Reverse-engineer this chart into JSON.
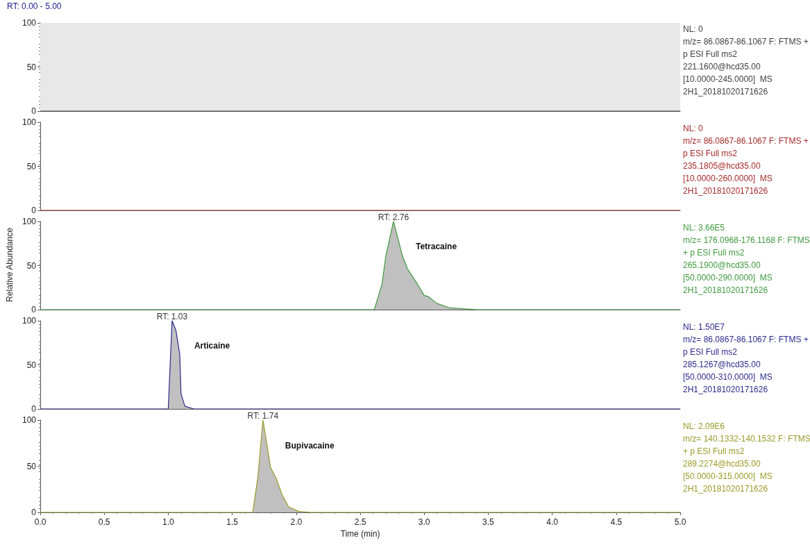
{
  "chart_data": [
    {
      "type": "line",
      "title": "RT: 0.00 - 5.00",
      "xlim": [
        0,
        5
      ],
      "ylim": [
        0,
        100
      ],
      "yticks": [
        0,
        50,
        100
      ],
      "tick_labels": "y",
      "bands": [
        {
          "axis": "x",
          "from": 0,
          "to": 5,
          "color": "#e8e8e8"
        }
      ],
      "series": [
        {
          "color": "#404040",
          "x": [
            0,
            5
          ],
          "values": [
            0,
            0
          ]
        }
      ],
      "annotations": [
        "NL: 0\nm/z= 86.0867-86.1067 F: FTMS +\np ESI Full ms2\n221.1600@hcd35.00\n[10.0000-245.0000]  MS\n2H1_20181020171626"
      ]
    },
    {
      "type": "line",
      "xlim": [
        0,
        5
      ],
      "ylim": [
        0,
        100
      ],
      "yticks": [
        0,
        50,
        100
      ],
      "tick_labels": "y",
      "series": [
        {
          "color": "#a52a2a",
          "x": [
            0,
            5
          ],
          "values": [
            0,
            0
          ]
        }
      ],
      "annotations": [
        "NL: 0\nm/z= 86.0867-86.1067 F: FTMS +\np ESI Full ms2\n235.1805@hcd35.00\n[10.0000-260.0000]  MS\n2H1_20181020171626"
      ]
    },
    {
      "type": "area",
      "ylabel": "Relative Abundance",
      "xlim": [
        0,
        5
      ],
      "ylim": [
        0,
        100
      ],
      "yticks": [
        0,
        50,
        100
      ],
      "tick_labels": "y",
      "series": [
        {
          "color": "#3f9a3f",
          "x": [
            0,
            2.61,
            2.67,
            2.7,
            2.76,
            2.83,
            2.87,
            2.93,
            3.0,
            3.03,
            3.1,
            3.2,
            3.41,
            5
          ],
          "values": [
            0,
            0,
            29,
            61,
            100,
            61,
            46,
            33,
            16,
            15,
            7,
            2,
            0,
            0
          ]
        }
      ],
      "annotations": [
        "NL: 3.66E5\nm/z= 176.0968-176.1168 F: FTMS\n+ p ESI Full ms2\n265.1900@hcd35.00\n[50.0000-290.0000]  MS\n2H1_20181020171626",
        {
          "text": "RT: 2.76",
          "x": 2.76,
          "y": 100
        },
        "Tetracaine"
      ]
    },
    {
      "type": "area",
      "xlim": [
        0,
        5
      ],
      "ylim": [
        0,
        100
      ],
      "yticks": [
        0,
        50,
        100
      ],
      "tick_labels": "y",
      "series": [
        {
          "color": "#2a2a8c",
          "x": [
            0,
            1.0,
            1.03,
            1.06,
            1.09,
            1.1,
            1.13,
            1.2,
            5
          ],
          "values": [
            0,
            0,
            100,
            89,
            62,
            17,
            3,
            0,
            0
          ]
        }
      ],
      "annotations": [
        "NL: 1.50E7\nm/z= 86.0867-86.1067 F: FTMS +\np ESI Full ms2\n285.1267@hcd35.00\n[50.0000-310.0000]  MS\n2H1_20181020171626",
        {
          "text": "RT: 1.03",
          "x": 1.03,
          "y": 100
        },
        "Articaine"
      ]
    },
    {
      "type": "area",
      "xlabel": "Time (min)",
      "xlim": [
        0,
        5
      ],
      "ylim": [
        0,
        100
      ],
      "yticks": [
        0,
        50,
        100
      ],
      "xticks": [
        {
          "value": 0,
          "label": "0.0"
        },
        {
          "value": 0.5,
          "label": "0.5"
        },
        {
          "value": 1,
          "label": "1.0"
        },
        {
          "value": 1.5,
          "label": "1.5"
        },
        {
          "value": 2,
          "label": "2.0"
        },
        {
          "value": 2.5,
          "label": "2.5"
        },
        {
          "value": 3,
          "label": "3.0"
        },
        {
          "value": 3.5,
          "label": "3.5"
        },
        {
          "value": 4,
          "label": "4.0"
        },
        {
          "value": 4.5,
          "label": "4.5"
        },
        {
          "value": 5,
          "label": "5.0"
        }
      ],
      "series": [
        {
          "color": "#9a9a2a",
          "x": [
            0,
            1.66,
            1.7,
            1.74,
            1.76,
            1.8,
            1.84,
            1.89,
            1.94,
            2.02,
            2.11,
            5
          ],
          "values": [
            0,
            0,
            38,
            100,
            83,
            48,
            38,
            19,
            6,
            1,
            0,
            0
          ]
        }
      ],
      "annotations": [
        "NL: 2.09E6\nm/z= 140.1332-140.1532 F: FTMS\n+ p ESI Full ms2\n289.2274@hcd35.00\n[50.0000-315.0000]  MS\n2H1_20181020171626",
        {
          "text": "RT: 1.74",
          "x": 1.74,
          "y": 100
        },
        "Bupivacaine"
      ]
    }
  ]
}
